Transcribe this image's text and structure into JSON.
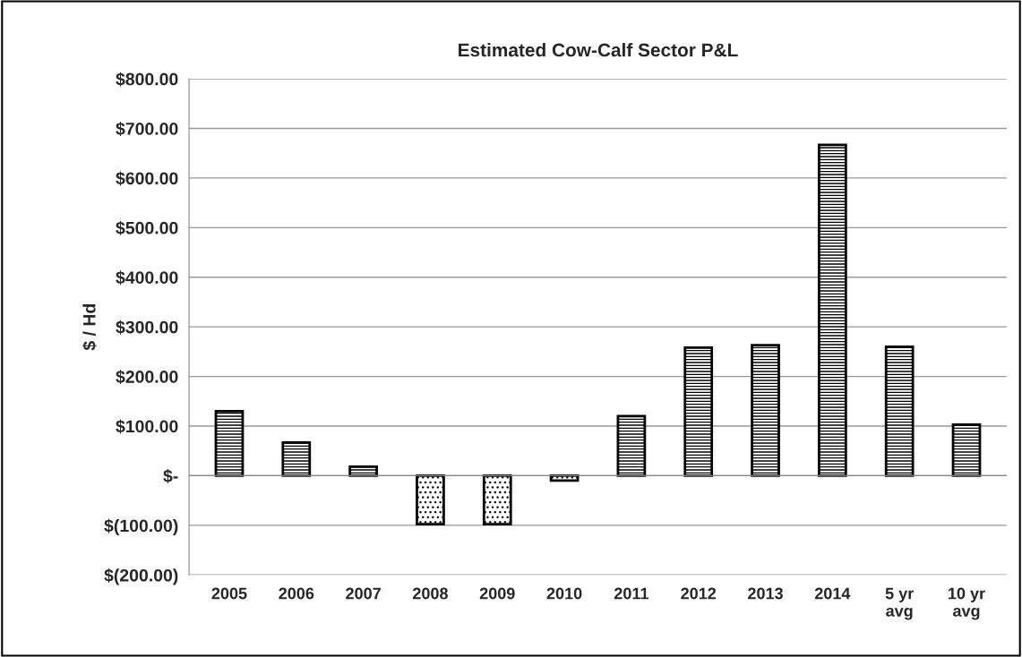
{
  "chart_data": {
    "type": "bar",
    "title": "Estimated Cow-Calf Sector P&L",
    "ylabel": "$ / Hd",
    "categories": [
      "2005",
      "2006",
      "2007",
      "2008",
      "2009",
      "2010",
      "2011",
      "2012",
      "2013",
      "2014",
      "5 yr\navg",
      "10 yr\navg"
    ],
    "values": [
      130,
      67,
      18,
      -98,
      -98,
      -10,
      120,
      258,
      263,
      667,
      260,
      103
    ],
    "color": "#000000",
    "ylim": [
      -200,
      800
    ],
    "yticks": [
      {
        "value": -200,
        "label": "$(200.00)"
      },
      {
        "value": -100,
        "label": "$(100.00)"
      },
      {
        "value": 0,
        "label": "$-"
      },
      {
        "value": 100,
        "label": "$100.00"
      },
      {
        "value": 200,
        "label": "$200.00"
      },
      {
        "value": 300,
        "label": "$300.00"
      },
      {
        "value": 400,
        "label": "$400.00"
      },
      {
        "value": 500,
        "label": "$500.00"
      },
      {
        "value": 600,
        "label": "$600.00"
      },
      {
        "value": 700,
        "label": "$700.00"
      },
      {
        "value": 800,
        "label": "$800.00"
      }
    ],
    "grid": "y",
    "legend": false
  }
}
